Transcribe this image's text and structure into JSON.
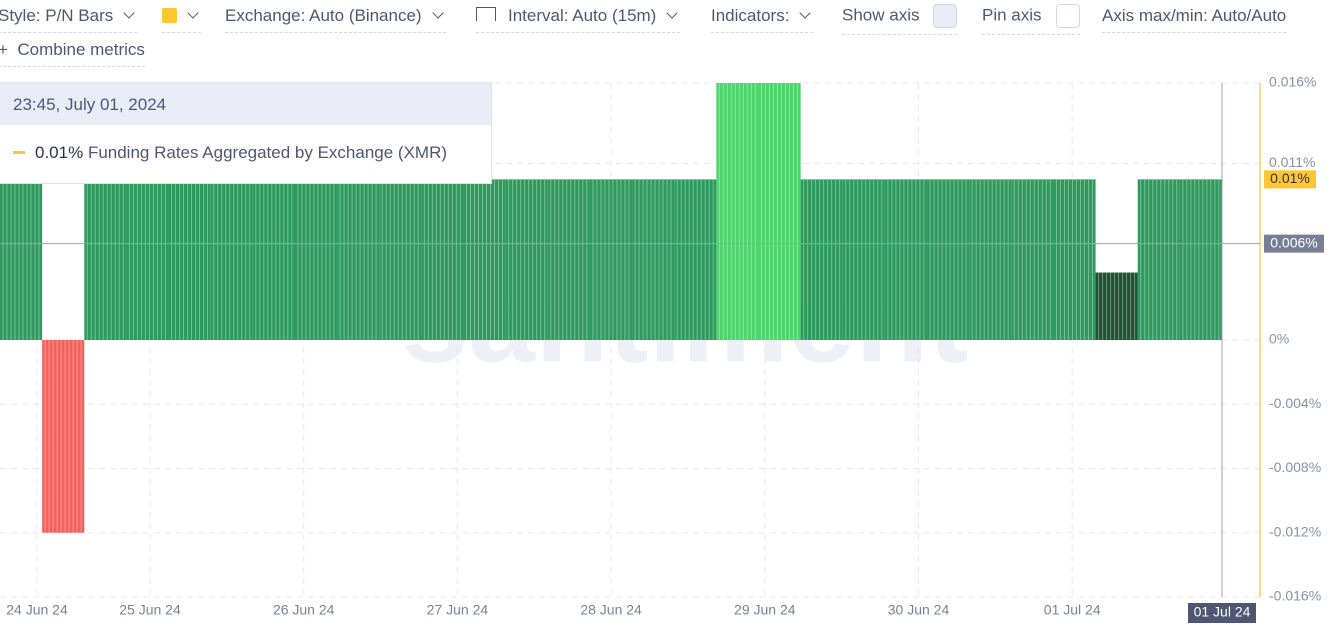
{
  "toolbar": {
    "style": "Style: P/N Bars",
    "exchange": "Exchange: Auto (Binance)",
    "interval": "Interval: Auto (15m)",
    "indicators": "Indicators:",
    "show_axis": "Show axis",
    "pin_axis": "Pin axis",
    "axis_range": "Axis max/min: Auto/Auto",
    "combine": "Combine metrics"
  },
  "tooltip": {
    "time": "23:45, July 01, 2024",
    "value": "0.01%",
    "metric": "Funding Rates Aggregated by Exchange (XMR)"
  },
  "watermark": "santiment",
  "chart_data": {
    "type": "bar",
    "categories": [
      null,
      null,
      null,
      null,
      null,
      null,
      null,
      null,
      null,
      null,
      null,
      null,
      null,
      null,
      null,
      null,
      null,
      null,
      null,
      null,
      null,
      null,
      null,
      null,
      null,
      null,
      null,
      null,
      null
    ],
    "values": [
      0.01,
      -0.012,
      0.01,
      0.01,
      0.01,
      0.01,
      0.01,
      0.01,
      0.01,
      0.01,
      0.01,
      0.01,
      0.01,
      0.01,
      0.01,
      0.01,
      0.01,
      0.016,
      0.016,
      0.01,
      0.01,
      0.01,
      0.01,
      0.01,
      0.01,
      0.01,
      0.0042,
      0.01,
      0.01
    ],
    "colors": [
      "#2f9a5e",
      "#f2625d",
      "#2f9a5e",
      "#2f9a5e",
      "#2f9a5e",
      "#2f9a5e",
      "#2f9a5e",
      "#2f9a5e",
      "#2f9a5e",
      "#2f9a5e",
      "#2f9a5e",
      "#2f9a5e",
      "#2f9a5e",
      "#2f9a5e",
      "#2f9a5e",
      "#2f9a5e",
      "#2f9a5e",
      "#4fd46d",
      "#4fd46d",
      "#2f9a5e",
      "#2f9a5e",
      "#2f9a5e",
      "#2f9a5e",
      "#2f9a5e",
      "#2f9a5e",
      "#2f9a5e",
      "#1e5433",
      "#2f9a5e",
      "#2f9a5e"
    ],
    "ylim": [
      -0.016,
      0.016
    ],
    "yticks": [
      {
        "value": 0.016,
        "label": "0.016%"
      },
      {
        "value": 0.011,
        "label": "0.011%"
      },
      {
        "value": 0,
        "label": "0%"
      },
      {
        "value": -0.004,
        "label": "-0.004%"
      },
      {
        "value": -0.008,
        "label": "-0.008%"
      },
      {
        "value": -0.012,
        "label": "-0.012%"
      },
      {
        "value": -0.016,
        "label": "-0.016%"
      }
    ],
    "x_labels": [
      "24 Jun 24",
      "25 Jun 24",
      "26 Jun 24",
      "27 Jun 24",
      "28 Jun 24",
      "29 Jun 24",
      "30 Jun 24",
      "01 Jul 24"
    ],
    "crosshair": {
      "value": 0.006,
      "label": "0.006%"
    },
    "crosshair_date": "01 Jul 24",
    "last_value": {
      "value": 0.01,
      "label": "0.01%"
    },
    "grid": true
  }
}
